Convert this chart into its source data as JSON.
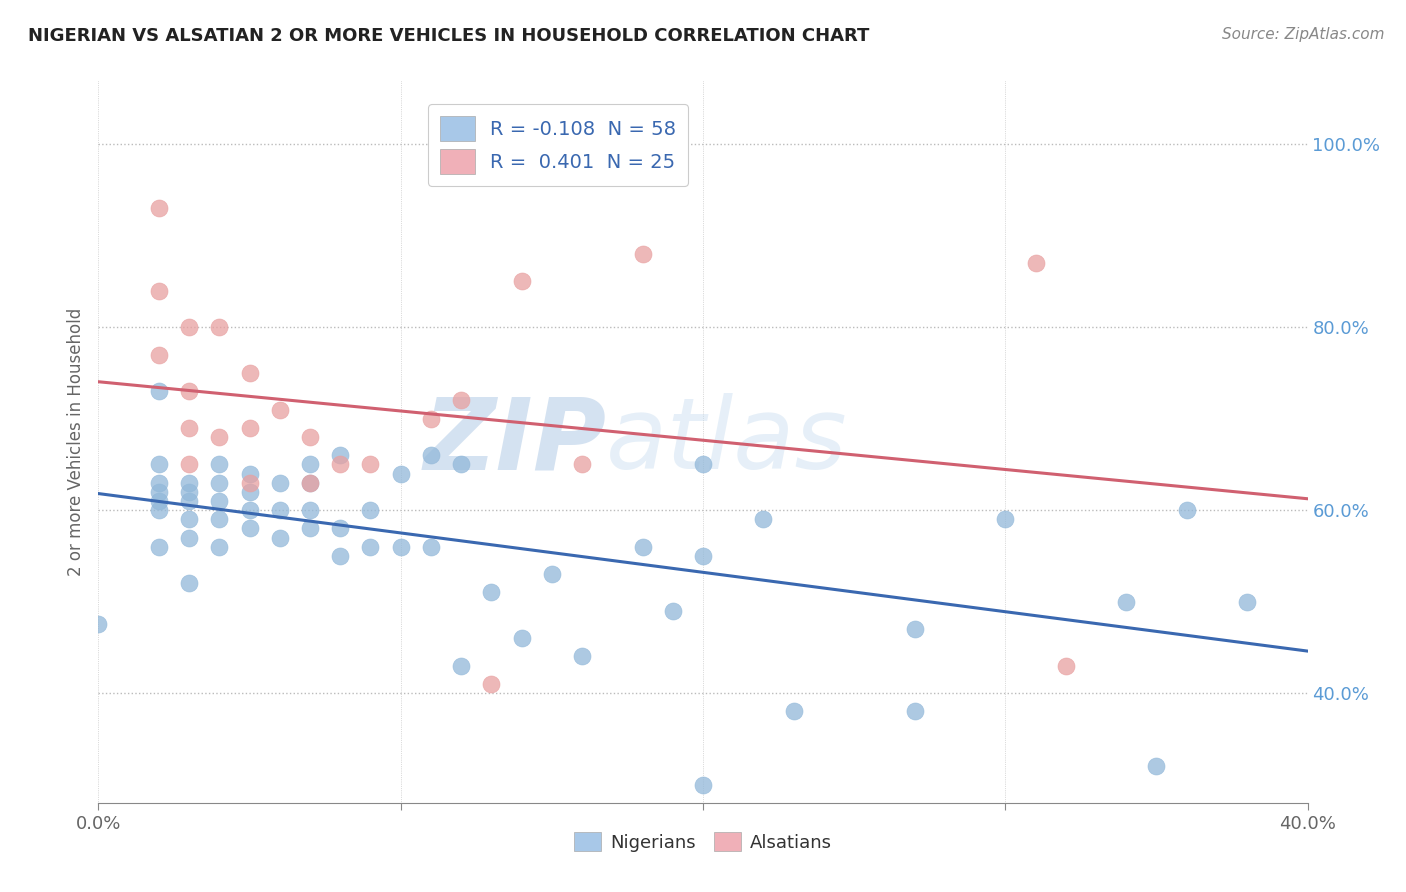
{
  "title": "NIGERIAN VS ALSATIAN 2 OR MORE VEHICLES IN HOUSEHOLD CORRELATION CHART",
  "source_text": "Source: ZipAtlas.com",
  "ylabel": "2 or more Vehicles in Household",
  "xlim": [
    0.0,
    0.4
  ],
  "ylim": [
    0.28,
    1.07
  ],
  "xticks": [
    0.0,
    0.1,
    0.2,
    0.3,
    0.4
  ],
  "xticklabels": [
    "0.0%",
    "",
    "",
    "",
    "40.0%"
  ],
  "yticks": [
    0.4,
    0.6,
    0.8,
    1.0
  ],
  "yticklabels": [
    "40.0%",
    "60.0%",
    "80.0%",
    "100.0%"
  ],
  "nigerian_color": "#92b8d9",
  "alsatian_color": "#e8a0a0",
  "nigerian_line_color": "#3a68b0",
  "alsatian_line_color": "#d06070",
  "legend_blue_color": "#a8c8e8",
  "legend_pink_color": "#f0b0b8",
  "R_nigerian": -0.108,
  "N_nigerian": 58,
  "R_alsatian": 0.401,
  "N_alsatian": 25,
  "watermark_zip": "ZIP",
  "watermark_atlas": "atlas",
  "nigerian_x": [
    0.0,
    0.02,
    0.02,
    0.02,
    0.02,
    0.02,
    0.02,
    0.02,
    0.03,
    0.03,
    0.03,
    0.03,
    0.03,
    0.03,
    0.04,
    0.04,
    0.04,
    0.04,
    0.04,
    0.05,
    0.05,
    0.05,
    0.05,
    0.06,
    0.06,
    0.06,
    0.07,
    0.07,
    0.07,
    0.07,
    0.08,
    0.08,
    0.08,
    0.09,
    0.09,
    0.1,
    0.1,
    0.11,
    0.11,
    0.12,
    0.12,
    0.13,
    0.14,
    0.15,
    0.16,
    0.18,
    0.19,
    0.2,
    0.2,
    0.22,
    0.23,
    0.27,
    0.27,
    0.3,
    0.34,
    0.35,
    0.36,
    0.38
  ],
  "nigerian_y": [
    0.475,
    0.56,
    0.6,
    0.61,
    0.62,
    0.63,
    0.65,
    0.73,
    0.52,
    0.57,
    0.59,
    0.61,
    0.62,
    0.63,
    0.56,
    0.59,
    0.61,
    0.63,
    0.65,
    0.58,
    0.6,
    0.62,
    0.64,
    0.57,
    0.6,
    0.63,
    0.58,
    0.6,
    0.63,
    0.65,
    0.55,
    0.58,
    0.66,
    0.56,
    0.6,
    0.56,
    0.64,
    0.56,
    0.66,
    0.43,
    0.65,
    0.51,
    0.46,
    0.53,
    0.44,
    0.56,
    0.49,
    0.65,
    0.55,
    0.59,
    0.38,
    0.38,
    0.47,
    0.59,
    0.5,
    0.32,
    0.6,
    0.5
  ],
  "alsatian_x": [
    0.02,
    0.02,
    0.02,
    0.03,
    0.03,
    0.03,
    0.03,
    0.04,
    0.04,
    0.05,
    0.05,
    0.05,
    0.06,
    0.07,
    0.07,
    0.08,
    0.09,
    0.11,
    0.12,
    0.13,
    0.14,
    0.16,
    0.18,
    0.31,
    0.32
  ],
  "alsatian_y": [
    0.93,
    0.84,
    0.77,
    0.8,
    0.73,
    0.69,
    0.65,
    0.8,
    0.68,
    0.75,
    0.69,
    0.63,
    0.71,
    0.68,
    0.63,
    0.65,
    0.65,
    0.7,
    0.72,
    0.41,
    0.85,
    0.65,
    0.88,
    0.87,
    0.43
  ],
  "nigerian_below_x": [
    0.2
  ],
  "nigerian_below_y": [
    0.3
  ]
}
